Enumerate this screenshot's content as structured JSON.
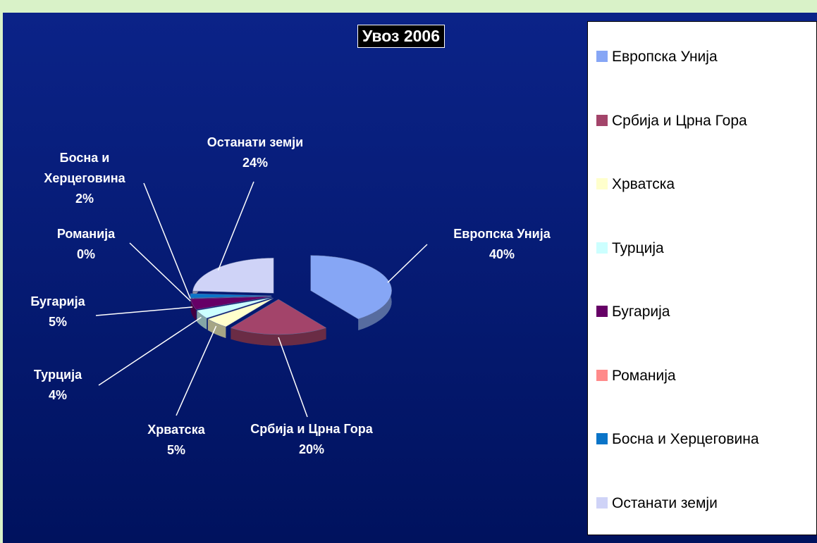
{
  "chart_data": {
    "type": "pie",
    "title": "Увоз 2006",
    "categories": [
      "Европска Унија",
      "Србија и Црна Гора",
      "Хрватска",
      "Турција",
      "Бугарија",
      "Романија",
      "Босна и Херцеговина",
      "Останати земји"
    ],
    "values": [
      40,
      20,
      5,
      4,
      5,
      0,
      2,
      24
    ],
    "value_labels": [
      "40%",
      "20%",
      "5%",
      "4%",
      "5%",
      "0%",
      "2%",
      "24%"
    ],
    "colors": [
      "#86a6f5",
      "#a3446a",
      "#ffffcc",
      "#ccffff",
      "#660066",
      "#ff8a8a",
      "#0a74c8",
      "#cfd3f7"
    ],
    "legend": "right"
  }
}
